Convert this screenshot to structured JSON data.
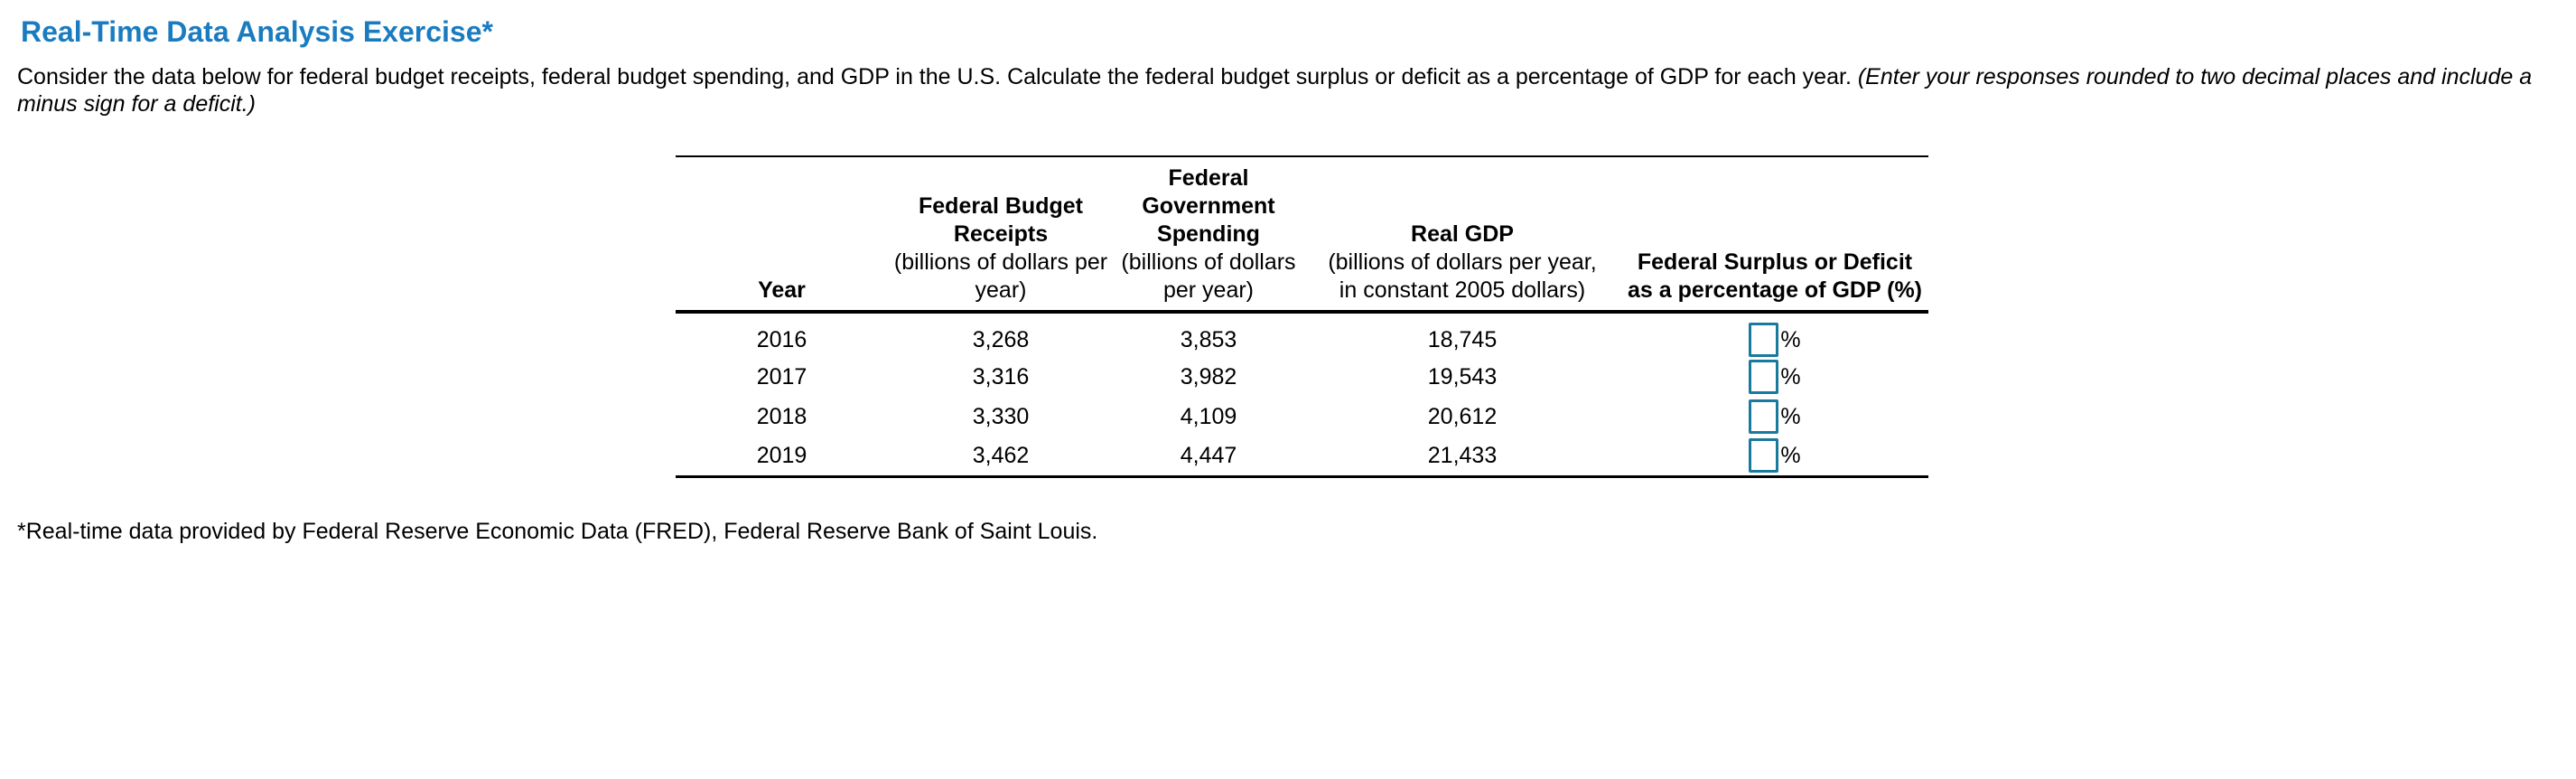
{
  "header": {
    "title": "Real-Time Data Analysis Exercise*",
    "title_color": "#1A7CBF"
  },
  "instructions": {
    "normal": "Consider the data below for federal budget receipts, federal budget spending, and GDP in the U.S. Calculate the federal budget surplus or deficit as a percentage of GDP for each year. ",
    "italic": "(Enter your responses rounded to two decimal places and include a minus sign for a deficit.)"
  },
  "table": {
    "columns": [
      {
        "bold": "Year",
        "note": ""
      },
      {
        "bold": "Federal Budget\nReceipts",
        "note": "(billions of dollars per\nyear)"
      },
      {
        "bold": "Federal\nGovernment\nSpending",
        "note": "(billions of dollars\nper year)"
      },
      {
        "bold": "Real GDP",
        "note": "(billions of dollars per year,\nin constant 2005 dollars)"
      },
      {
        "bold": "Federal Surplus or Deficit\nas a percentage of GDP (%)",
        "note": ""
      }
    ],
    "rows": [
      {
        "year": "2016",
        "receipts": "3,268",
        "spending": "3,853",
        "gdp": "18,745",
        "surplus_value": ""
      },
      {
        "year": "2017",
        "receipts": "3,316",
        "spending": "3,982",
        "gdp": "19,543",
        "surplus_value": ""
      },
      {
        "year": "2018",
        "receipts": "3,330",
        "spending": "4,109",
        "gdp": "20,612",
        "surplus_value": ""
      },
      {
        "year": "2019",
        "receipts": "3,462",
        "spending": "4,447",
        "gdp": "21,433",
        "surplus_value": ""
      }
    ],
    "percent_sign": "%",
    "input_border_color": "#1A7A9D"
  },
  "footnote": "*Real-time data provided by Federal Reserve Economic Data (FRED), Federal Reserve Bank of Saint Louis."
}
